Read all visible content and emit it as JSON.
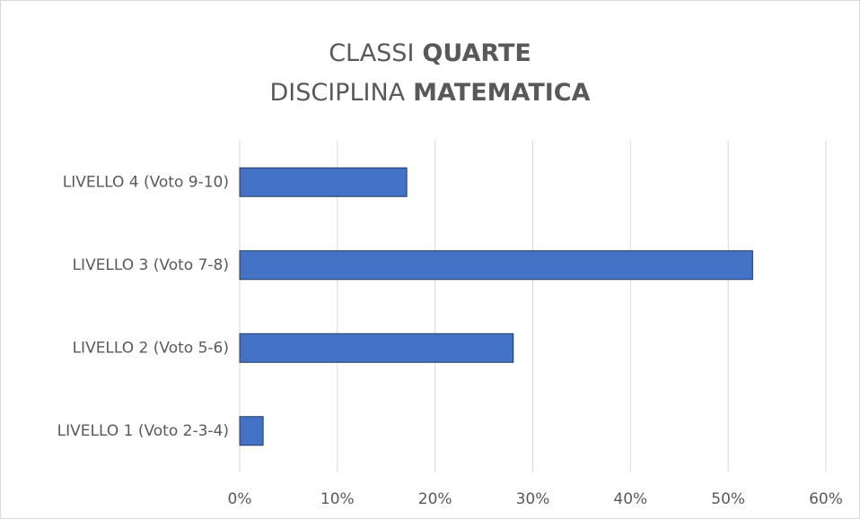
{
  "chart_data": {
    "type": "bar",
    "orientation": "horizontal",
    "title": [
      {
        "regular": "CLASSI",
        "bold": "QUARTE"
      },
      {
        "regular": "DISCIPLINA",
        "bold": "MATEMATICA"
      }
    ],
    "categories": [
      "LIVELLO 4 (Voto 9-10)",
      "LIVELLO 3 (Voto 7-8)",
      "LIVELLO 2 (Voto 5-6)",
      "LIVELLO 1 (Voto 2-3-4)"
    ],
    "values": [
      17.1,
      52.5,
      28.0,
      2.4
    ],
    "color": "#4472c4",
    "xlim": [
      0,
      60
    ],
    "xticks": [
      {
        "value": 0,
        "label": "0%"
      },
      {
        "value": 10,
        "label": "10%"
      },
      {
        "value": 20,
        "label": "20%"
      },
      {
        "value": 30,
        "label": "30%"
      },
      {
        "value": 40,
        "label": "40%"
      },
      {
        "value": 50,
        "label": "50%"
      },
      {
        "value": 60,
        "label": "60%"
      }
    ],
    "grid": true
  }
}
